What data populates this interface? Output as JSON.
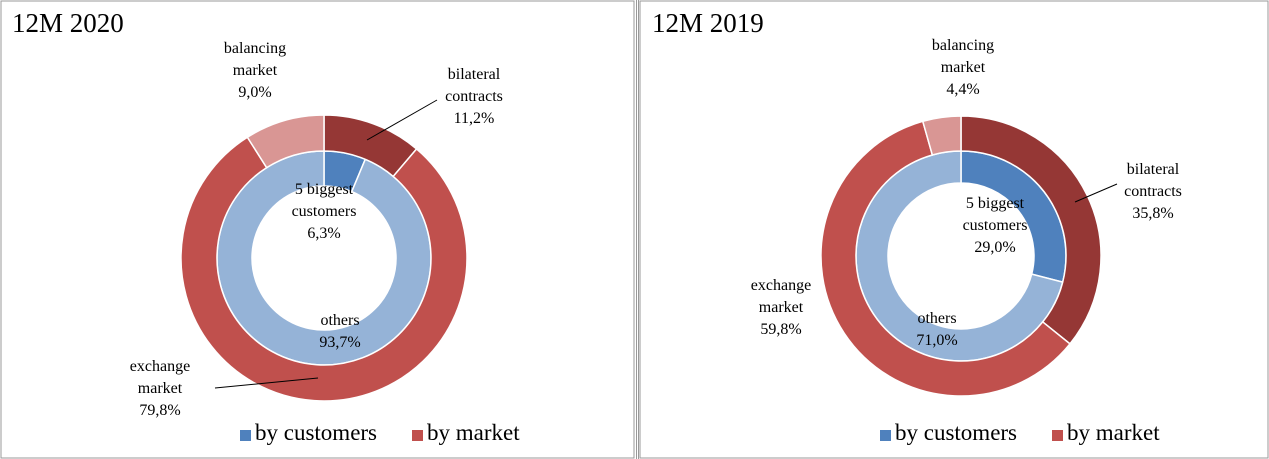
{
  "chart_data": [
    {
      "type": "donut",
      "title": "12M 2020",
      "series": [
        {
          "name": "by customers",
          "color": "#4f81bd",
          "categories": [
            "5 biggest customers",
            "others"
          ],
          "values": [
            6.3,
            93.7
          ],
          "value_labels": [
            "6,3%",
            "93,7%"
          ],
          "colors": [
            "#4f81bd",
            "#95b3d7"
          ]
        },
        {
          "name": "by market",
          "color": "#c0504d",
          "categories": [
            "bilateral contracts",
            "exchange market",
            "balancing market"
          ],
          "values": [
            11.2,
            79.8,
            9.0
          ],
          "value_labels": [
            "11,2%",
            "79,8%",
            "9,0%"
          ],
          "colors": [
            "#953735",
            "#c0504d",
            "#d99694"
          ]
        }
      ]
    },
    {
      "type": "donut",
      "title": "12M 2019",
      "series": [
        {
          "name": "by customers",
          "color": "#4f81bd",
          "categories": [
            "5 biggest customers",
            "others"
          ],
          "values": [
            29.0,
            71.0
          ],
          "value_labels": [
            "29,0%",
            "71,0%"
          ],
          "colors": [
            "#4f81bd",
            "#95b3d7"
          ]
        },
        {
          "name": "by market",
          "color": "#c0504d",
          "categories": [
            "bilateral contracts",
            "exchange market",
            "balancing market"
          ],
          "values": [
            35.8,
            59.8,
            4.4
          ],
          "value_labels": [
            "35,8%",
            "59,8%",
            "4,4%"
          ],
          "colors": [
            "#953735",
            "#c0504d",
            "#d99694"
          ]
        }
      ]
    }
  ]
}
